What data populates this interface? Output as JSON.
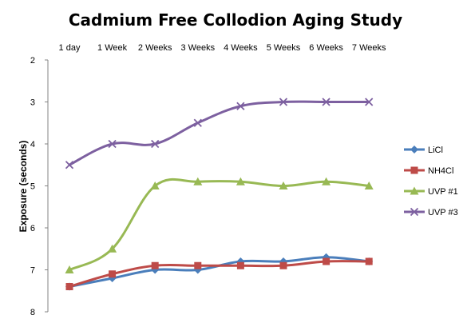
{
  "chart_data": {
    "type": "line",
    "title": "Cadmium Free Collodion Aging Study",
    "xlabel": "",
    "ylabel": "Exposure (seconds)",
    "categories": [
      "1 day",
      "1 Week",
      "2 Weeks",
      "3 Weeks",
      "4 Weeks",
      "5 Weeks",
      "6 Weeks",
      "7 Weeks"
    ],
    "ylim": [
      2,
      8
    ],
    "y_reversed": true,
    "y_ticks": [
      "2",
      "3",
      "4",
      "5",
      "6",
      "7",
      "8"
    ],
    "x_axis_position": "top",
    "grid": false,
    "legend_position": "right",
    "smoothed": true,
    "series": [
      {
        "name": "LiCl",
        "color": "#4a7ebb",
        "marker": "diamond",
        "values": [
          7.4,
          7.2,
          7.0,
          7.0,
          6.8,
          6.8,
          6.7,
          6.8
        ]
      },
      {
        "name": "NH4Cl",
        "color": "#be4b48",
        "marker": "square",
        "values": [
          7.4,
          7.1,
          6.9,
          6.9,
          6.9,
          6.9,
          6.8,
          6.8
        ]
      },
      {
        "name": "UVP #1",
        "color": "#98b954",
        "marker": "triangle",
        "values": [
          7.0,
          6.5,
          5.0,
          4.9,
          4.9,
          5.0,
          4.9,
          5.0
        ]
      },
      {
        "name": "UVP #3",
        "color": "#7d60a0",
        "marker": "x",
        "values": [
          4.5,
          4.0,
          4.0,
          3.5,
          3.1,
          3.0,
          3.0,
          3.0
        ]
      }
    ]
  }
}
